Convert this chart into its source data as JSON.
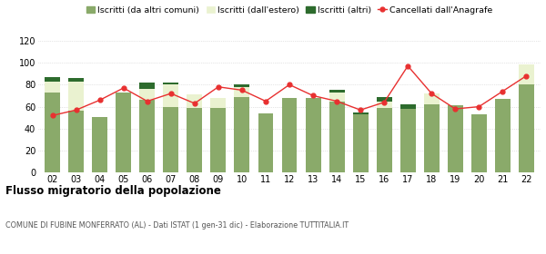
{
  "years": [
    "02",
    "03",
    "04",
    "05",
    "06",
    "07",
    "08",
    "09",
    "10",
    "11",
    "12",
    "13",
    "14",
    "15",
    "16",
    "17",
    "18",
    "19",
    "20",
    "21",
    "22"
  ],
  "iscritti_altri_comuni": [
    73,
    56,
    51,
    73,
    66,
    60,
    59,
    59,
    69,
    54,
    68,
    68,
    65,
    53,
    59,
    58,
    62,
    61,
    53,
    67,
    80
  ],
  "iscritti_estero": [
    10,
    27,
    0,
    0,
    10,
    20,
    12,
    9,
    9,
    0,
    0,
    0,
    8,
    0,
    6,
    0,
    10,
    0,
    0,
    0,
    18
  ],
  "iscritti_altri": [
    4,
    3,
    0,
    0,
    6,
    2,
    0,
    0,
    2,
    0,
    0,
    0,
    2,
    2,
    4,
    4,
    0,
    0,
    0,
    0,
    0
  ],
  "cancellati": [
    52,
    57,
    66,
    77,
    65,
    72,
    63,
    78,
    75,
    65,
    80,
    70,
    65,
    57,
    64,
    97,
    72,
    58,
    60,
    74,
    88
  ],
  "color_altri_comuni": "#8aaa6a",
  "color_estero": "#eaf2d0",
  "color_altri": "#2d6b2d",
  "color_cancellati": "#e83030",
  "ylim": [
    0,
    120
  ],
  "yticks": [
    0,
    20,
    40,
    60,
    80,
    100,
    120
  ],
  "title": "Flusso migratorio della popolazione",
  "subtitle": "COMUNE DI FUBINE MONFERRATO (AL) - Dati ISTAT (1 gen-31 dic) - Elaborazione TUTTITALIA.IT",
  "legend_labels": [
    "Iscritti (da altri comuni)",
    "Iscritti (dall'estero)",
    "Iscritti (altri)",
    "Cancellati dall'Anagrafe"
  ],
  "bg_color": "#ffffff",
  "grid_color": "#cccccc"
}
